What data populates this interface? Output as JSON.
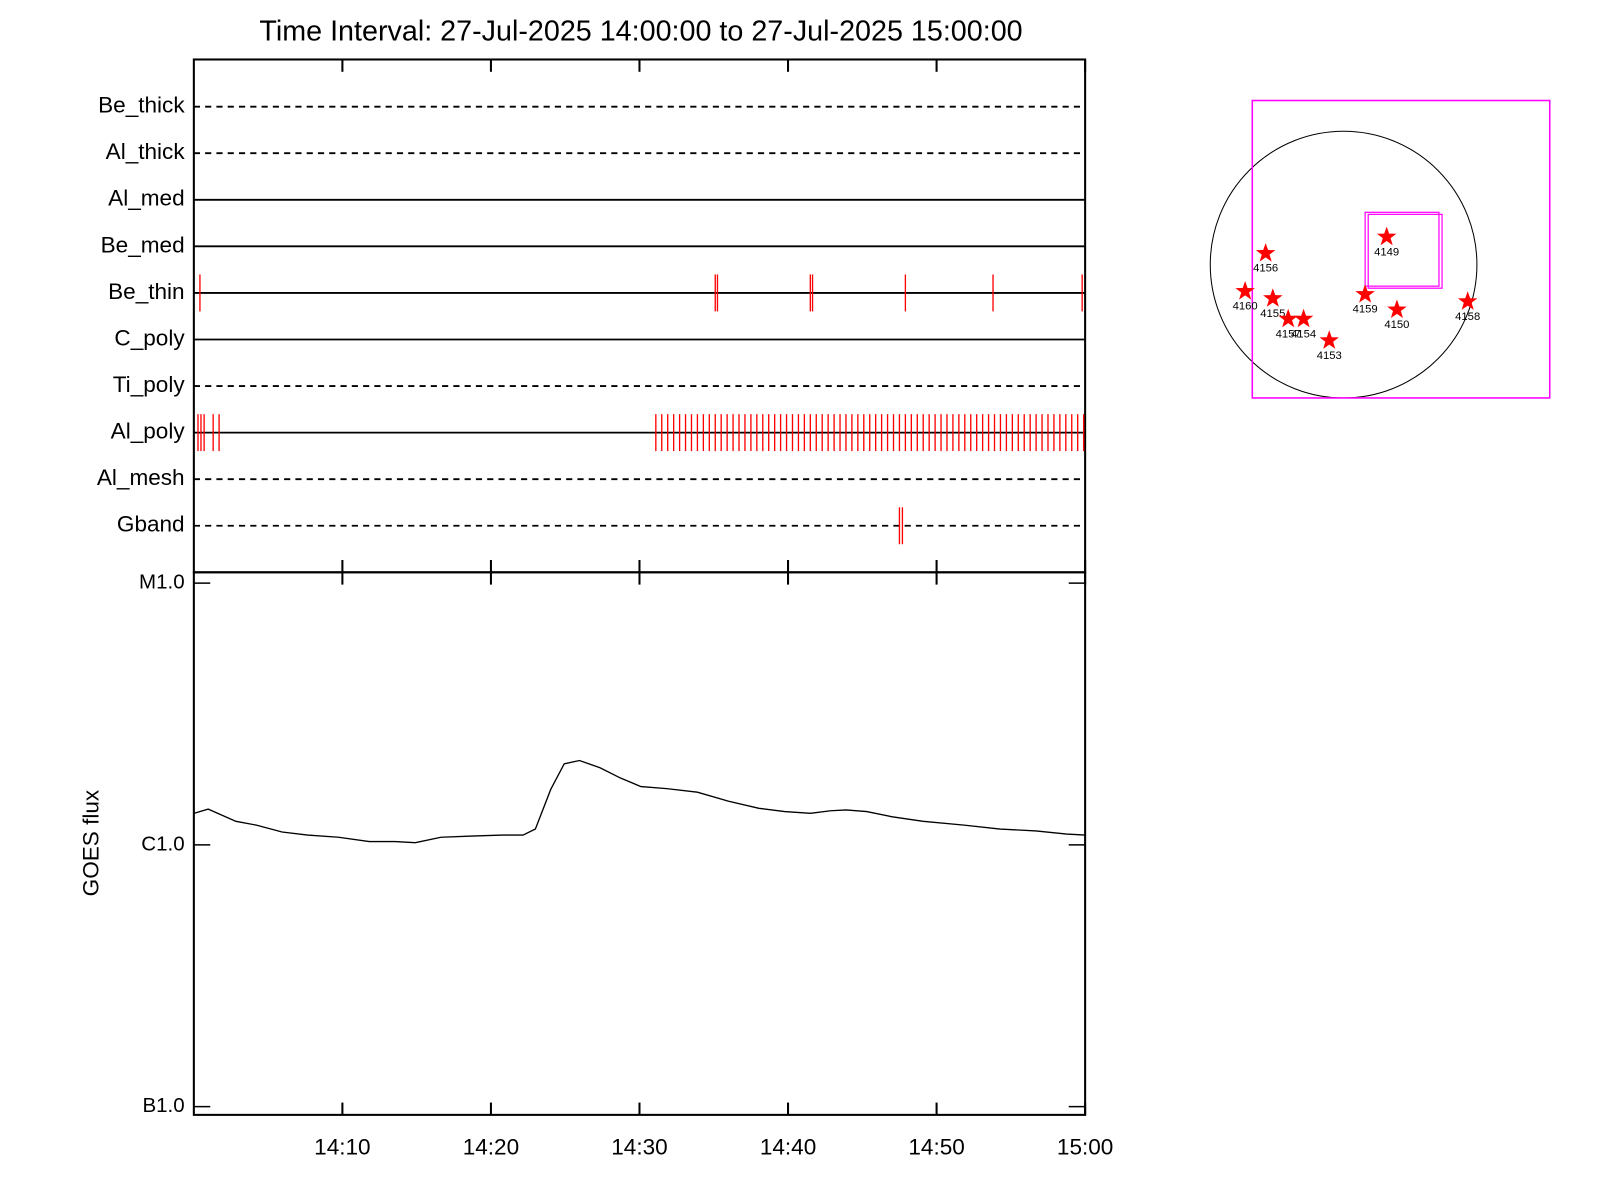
{
  "chart_data": [
    {
      "type": "event",
      "title": "Time Interval: 27-Jul-2025 14:00:00 to 27-Jul-2025 15:00:00",
      "categories": [
        "Be_thick",
        "Al_thick",
        "Al_med",
        "Be_med",
        "Be_thin",
        "C_poly",
        "Ti_poly",
        "Al_poly",
        "Al_mesh",
        "Gband"
      ],
      "line_styles": [
        "dashed",
        "dashed",
        "solid",
        "solid",
        "solid",
        "solid",
        "dashed",
        "solid",
        "dashed",
        "dashed"
      ],
      "events": [
        [],
        [],
        [],
        [],
        [
          0.41,
          35.1,
          35.25,
          41.5,
          41.65,
          47.9,
          53.8,
          59.8
        ],
        [],
        [],
        [
          0.28,
          0.48,
          0.69,
          1.3,
          1.7,
          31.1,
          31.5,
          31.9,
          32.3,
          32.7,
          33.1,
          33.5,
          33.9,
          34.3,
          34.7,
          35.1,
          35.5,
          35.9,
          36.3,
          36.7,
          37.1,
          37.5,
          37.9,
          38.3,
          38.7,
          39.1,
          39.5,
          39.9,
          40.3,
          40.7,
          41.1,
          41.5,
          41.9,
          42.3,
          42.7,
          43.1,
          43.5,
          43.9,
          44.3,
          44.7,
          45.1,
          45.5,
          45.9,
          46.3,
          46.7,
          47.1,
          47.5,
          47.9,
          48.3,
          48.7,
          49.1,
          49.5,
          49.9,
          50.3,
          50.7,
          51.1,
          51.5,
          51.9,
          52.3,
          52.7,
          53.1,
          53.5,
          53.9,
          54.3,
          54.7,
          55.1,
          55.5,
          55.9,
          56.3,
          56.7,
          57.1,
          57.5,
          57.9,
          58.3,
          58.7,
          59.1,
          59.5,
          59.9
        ],
        [],
        [
          47.5,
          47.7
        ]
      ],
      "event_color": "#ff0000",
      "xlim": [
        0,
        60
      ],
      "xticks": [
        10,
        20,
        30,
        40,
        50,
        60
      ]
    },
    {
      "type": "line",
      "y_label": "GOES flux",
      "color": "#000000",
      "log_scale": true,
      "x": [
        0,
        0.97,
        2.83,
        4.21,
        5.94,
        7.66,
        9.74,
        11.81,
        13.53,
        14.91,
        16.64,
        18.71,
        20.78,
        22.16,
        22.99,
        24.03,
        24.93,
        25.96,
        27.34,
        28.72,
        30.1,
        31.83,
        33.9,
        35.97,
        38.04,
        39.77,
        41.5,
        42.88,
        43.91,
        45.29,
        47.02,
        49.09,
        51.85,
        54.27,
        56.69,
        58.76,
        60
      ],
      "values": [
        1.32e-06,
        1.37e-06,
        1.23e-06,
        1.19e-06,
        1.12e-06,
        1.09e-06,
        1.07e-06,
        1.03e-06,
        1.03e-06,
        1.02e-06,
        1.07e-06,
        1.08e-06,
        1.09e-06,
        1.09e-06,
        1.15e-06,
        1.63e-06,
        2.04e-06,
        2.1e-06,
        1.97e-06,
        1.8e-06,
        1.67e-06,
        1.64e-06,
        1.59e-06,
        1.47e-06,
        1.38e-06,
        1.34e-06,
        1.32e-06,
        1.35e-06,
        1.36e-06,
        1.34e-06,
        1.28e-06,
        1.23e-06,
        1.19e-06,
        1.15e-06,
        1.13e-06,
        1.1e-06,
        1.09e-06
      ],
      "xlim": [
        0,
        60
      ],
      "xticks": [
        {
          "value": 10,
          "label": "14:10"
        },
        {
          "value": 20,
          "label": "14:20"
        },
        {
          "value": 30,
          "label": "14:30"
        },
        {
          "value": 40,
          "label": "14:40"
        },
        {
          "value": 50,
          "label": "14:50"
        },
        {
          "value": 60,
          "label": "15:00"
        }
      ],
      "ylim": [
        9.3e-08,
        1.1e-05
      ],
      "yticks": [
        {
          "value": 1e-07,
          "label": "B1.0"
        },
        {
          "value": 1e-06,
          "label": "C1.0"
        },
        {
          "value": 1e-05,
          "label": "M1.0"
        }
      ]
    },
    {
      "type": "map",
      "labels": [
        "4149",
        "4156",
        "4160",
        "4155",
        "4157",
        "4154",
        "4153",
        "4159",
        "4150",
        "4158"
      ],
      "marker_color": "#ff0000",
      "box_color": "#ff00ff"
    }
  ]
}
